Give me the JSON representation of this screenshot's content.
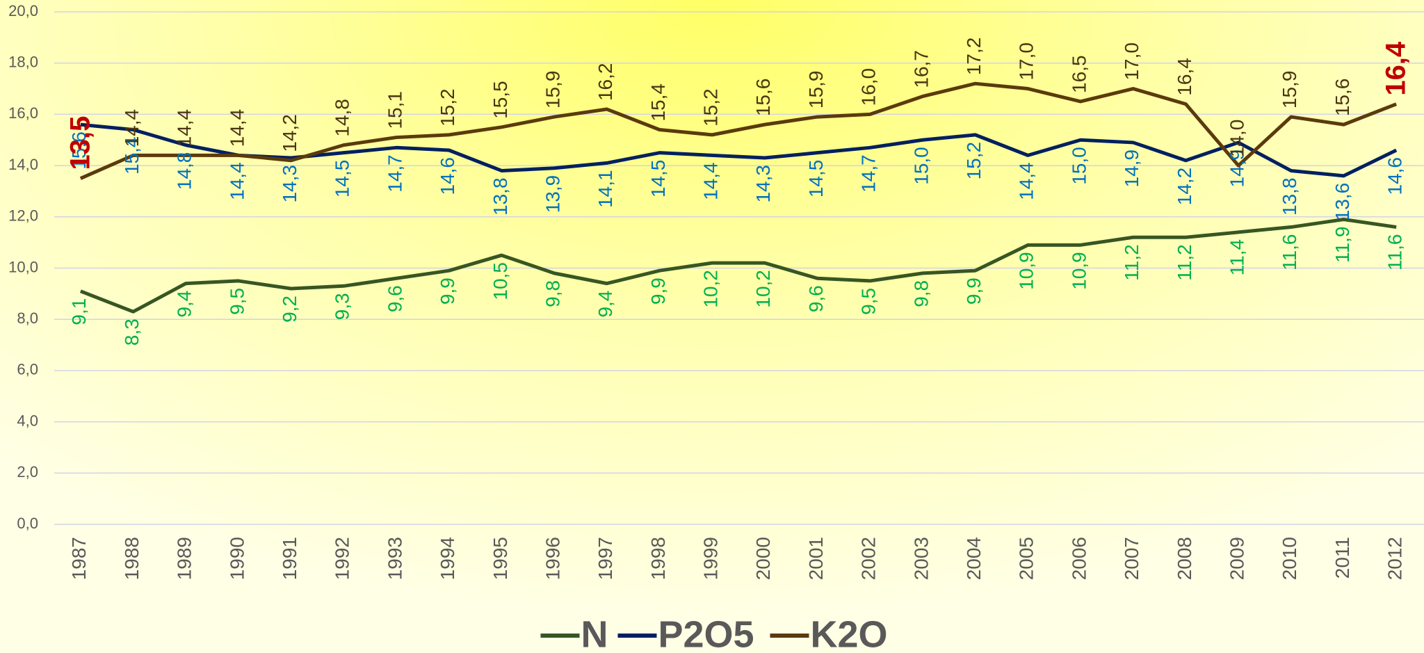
{
  "chart_data": {
    "type": "line",
    "categories": [
      "1987",
      "1988",
      "1989",
      "1990",
      "1991",
      "1992",
      "1993",
      "1994",
      "1995",
      "1996",
      "1997",
      "1998",
      "1999",
      "2000",
      "2001",
      "2002",
      "2003",
      "2004",
      "2005",
      "2006",
      "2007",
      "2008",
      "2009",
      "2010",
      "2011",
      "2012"
    ],
    "series": [
      {
        "name": "N",
        "color": "#375623",
        "label_color": "#00b050",
        "values": [
          9.1,
          8.3,
          9.4,
          9.5,
          9.2,
          9.3,
          9.6,
          9.9,
          10.5,
          9.8,
          9.4,
          9.9,
          10.2,
          10.2,
          9.6,
          9.5,
          9.8,
          9.9,
          10.9,
          10.9,
          11.2,
          11.2,
          11.4,
          11.6,
          11.9,
          11.6
        ],
        "value_labels": [
          "9,1",
          "8,3",
          "9,4",
          "9,5",
          "9,2",
          "9,3",
          "9,6",
          "9,9",
          "10,5",
          "9,8",
          "9,4",
          "9,9",
          "10,2",
          "10,2",
          "9,6",
          "9,5",
          "9,8",
          "9,9",
          "10,9",
          "10,9",
          "11,2",
          "11,2",
          "11,4",
          "11,6",
          "11,9",
          "11,6"
        ]
      },
      {
        "name": "P2O5",
        "color": "#002060",
        "label_color": "#0070c0",
        "values": [
          15.6,
          15.4,
          14.8,
          14.4,
          14.3,
          14.5,
          14.7,
          14.6,
          13.8,
          13.9,
          14.1,
          14.5,
          14.4,
          14.3,
          14.5,
          14.7,
          15.0,
          15.2,
          14.4,
          15.0,
          14.9,
          14.2,
          14.9,
          13.8,
          13.6,
          14.6
        ],
        "value_labels": [
          "15,6",
          "15,4",
          "14,8",
          "14,4",
          "14,3",
          "14,5",
          "14,7",
          "14,6",
          "13,8",
          "13,9",
          "14,1",
          "14,5",
          "14,4",
          "14,3",
          "14,5",
          "14,7",
          "15,0",
          "15,2",
          "14,4",
          "15,0",
          "14,9",
          "14,2",
          "14,9",
          "13,8",
          "13,6",
          "14,6"
        ]
      },
      {
        "name": "K2O",
        "color": "#5b3a0c",
        "label_color": "#4a3510",
        "values": [
          13.5,
          14.4,
          14.4,
          14.4,
          14.2,
          14.8,
          15.1,
          15.2,
          15.5,
          15.9,
          16.2,
          15.4,
          15.2,
          15.6,
          15.9,
          16.0,
          16.7,
          17.2,
          17.0,
          16.5,
          17.0,
          16.4,
          14.0,
          15.9,
          15.6,
          16.4
        ],
        "value_labels": [
          "13,5",
          "14,4",
          "14,4",
          "14,4",
          "14,2",
          "14,8",
          "15,1",
          "15,2",
          "15,5",
          "15,9",
          "16,2",
          "15,4",
          "15,2",
          "15,6",
          "15,9",
          "16,0",
          "16,7",
          "17,2",
          "17,0",
          "16,5",
          "17,0",
          "16,4",
          "14,0",
          "15,9",
          "15,6",
          "16,4"
        ]
      }
    ],
    "ylim": [
      0,
      20
    ],
    "yticks": [
      {
        "value": 0,
        "label": "0,0"
      },
      {
        "value": 2,
        "label": "2,0"
      },
      {
        "value": 4,
        "label": "4,0"
      },
      {
        "value": 6,
        "label": "6,0"
      },
      {
        "value": 8,
        "label": "8,0"
      },
      {
        "value": 10,
        "label": "10,0"
      },
      {
        "value": 12,
        "label": "12,0"
      },
      {
        "value": 14,
        "label": "14,0"
      },
      {
        "value": 16,
        "label": "16,0"
      },
      {
        "value": 18,
        "label": "18,0"
      },
      {
        "value": 20,
        "label": "20,0"
      }
    ],
    "grid": true,
    "legend": "bottom"
  }
}
